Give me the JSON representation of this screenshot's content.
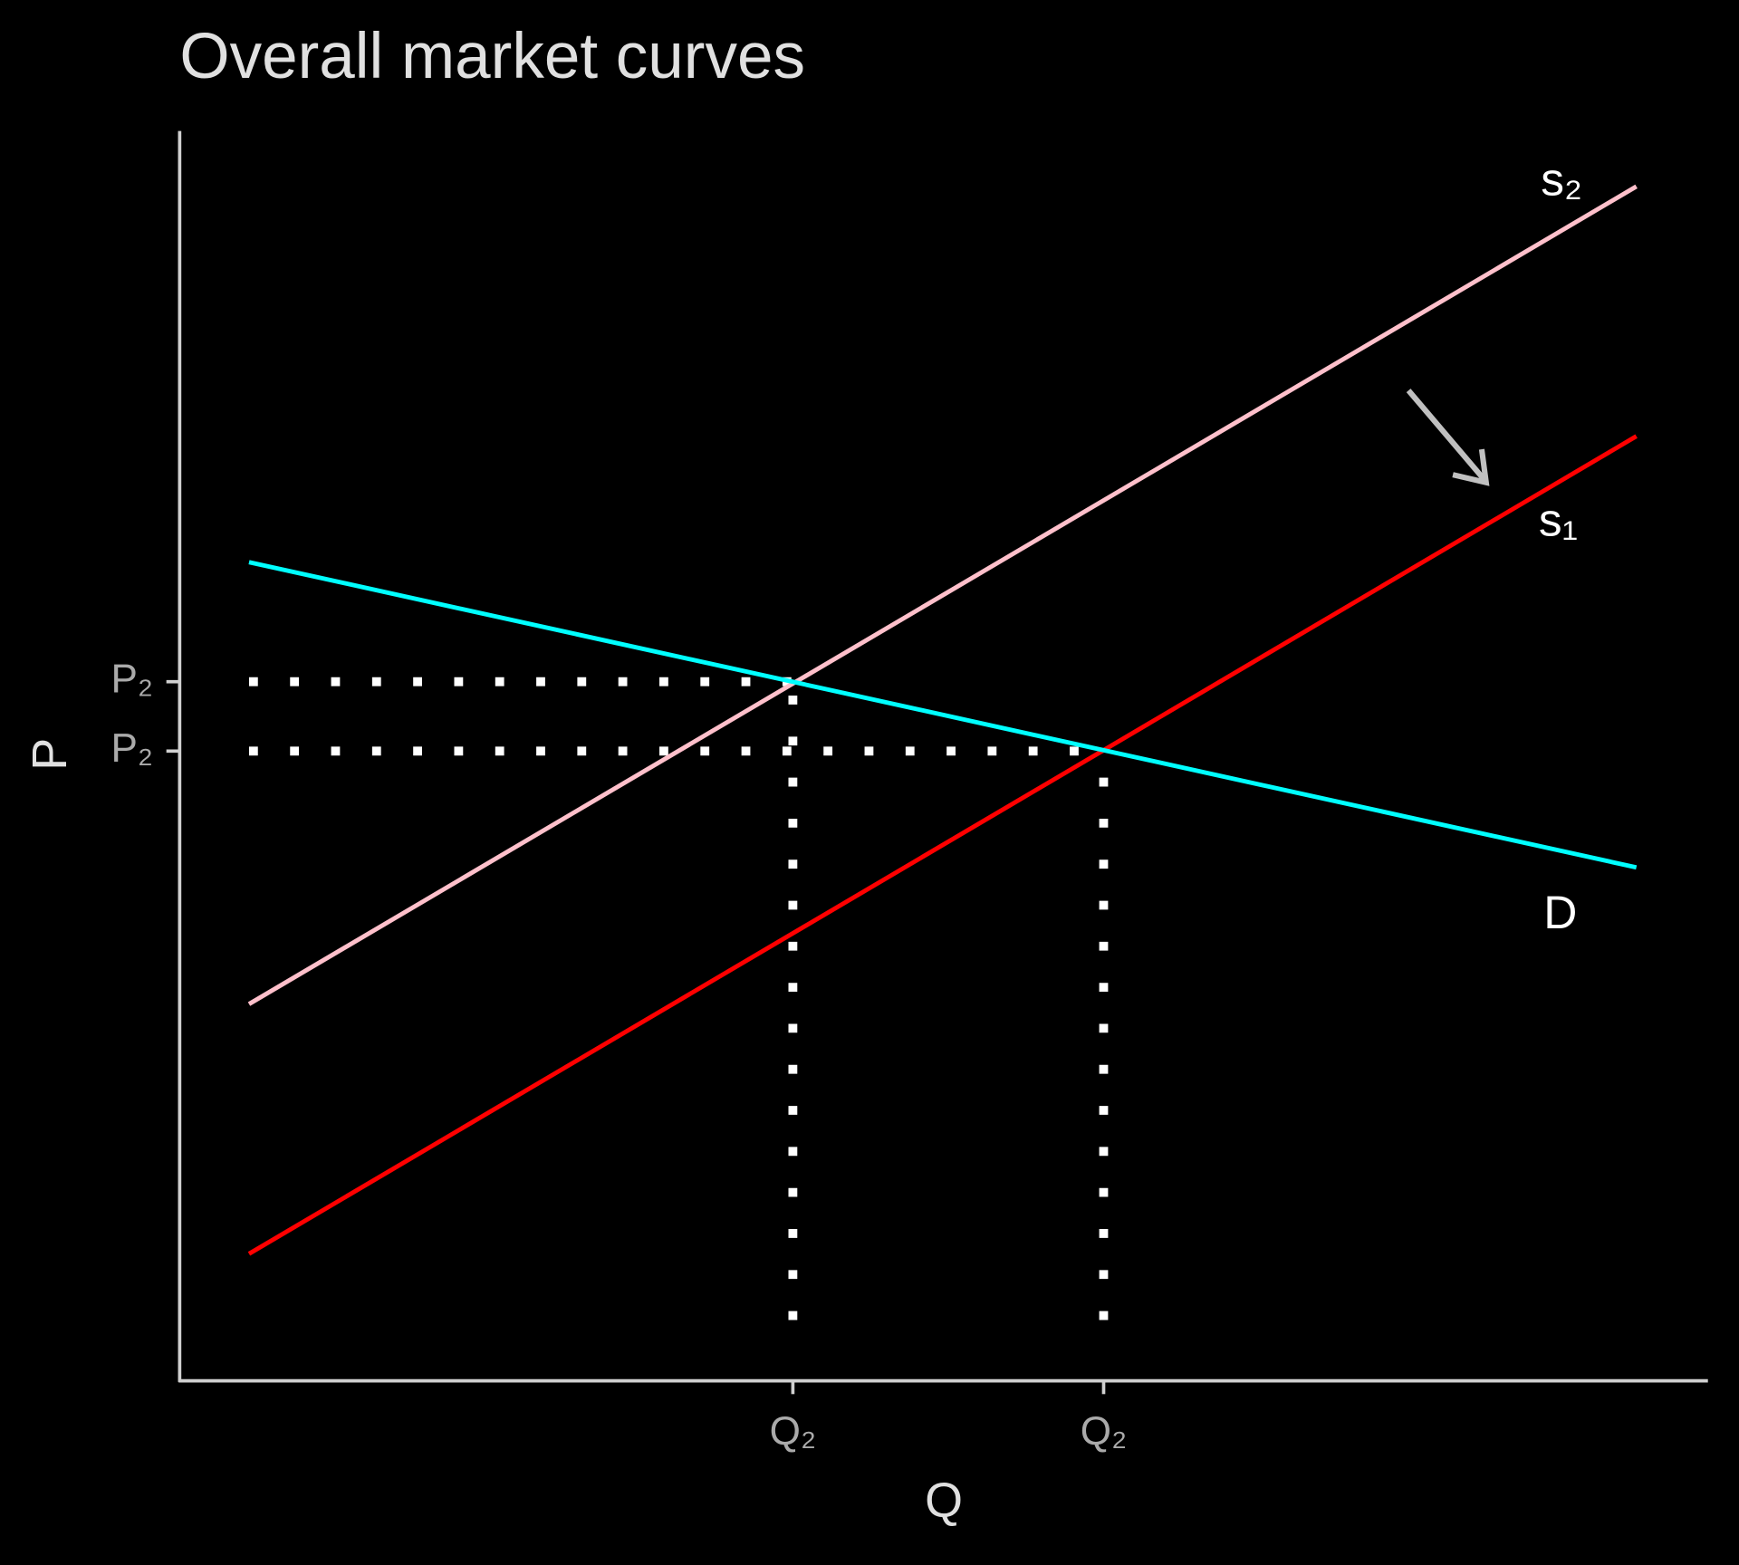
{
  "chart_data": {
    "type": "line",
    "title": "Overall market curves",
    "x_label": "Q",
    "y_label": "P",
    "xlim": [
      -0.5,
      10.5
    ],
    "ylim": [
      -0.57,
      11.14
    ],
    "xticks": [
      {
        "value": 3.92,
        "label": "Q₂"
      },
      {
        "value": 6.16,
        "label": "Q₂"
      }
    ],
    "yticks": [
      {
        "value": 5.98,
        "label": "P₂"
      },
      {
        "value": 5.33,
        "label": "P₂"
      }
    ],
    "series": [
      {
        "name": "s₂",
        "color": "#ffc0cb",
        "x": [
          0,
          10
        ],
        "values": [
          2.96,
          10.62
        ]
      },
      {
        "name": "s₁",
        "color": "#ff0000",
        "x": [
          0,
          10
        ],
        "values": [
          0.62,
          8.28
        ]
      },
      {
        "name": "D",
        "color": "#00ffff",
        "x": [
          0,
          10
        ],
        "values": [
          7.1,
          4.24
        ]
      }
    ],
    "guides": [
      {
        "x": [
          0,
          3.92
        ],
        "values": [
          5.98,
          5.98
        ]
      },
      {
        "x": [
          0,
          6.16
        ],
        "values": [
          5.33,
          5.33
        ]
      },
      {
        "x": [
          3.92,
          3.92
        ],
        "values": [
          0,
          5.98
        ]
      },
      {
        "x": [
          6.16,
          6.16
        ],
        "values": [
          0,
          5.33
        ]
      }
    ]
  }
}
